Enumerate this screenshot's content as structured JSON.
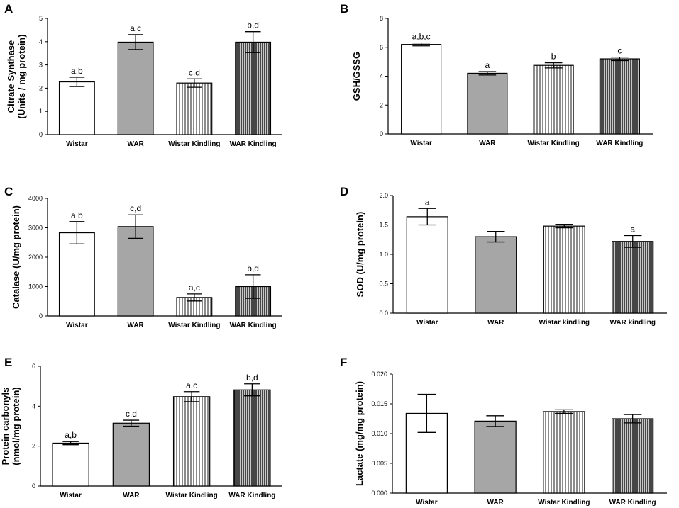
{
  "figure": {
    "background": "#ffffff"
  },
  "patterns": {
    "Wistar": "white",
    "WAR": "gray",
    "Wistar Kindling": "vstripe-light",
    "WAR Kindling": "vstripe-dark"
  },
  "colors": {
    "axis": "#000000",
    "gray_fill": "#a6a6a6",
    "stripe": "#000000",
    "bar_outline": "#000000"
  },
  "chart_data": [
    {
      "panel": "A",
      "type": "bar",
      "ylabel_lines": [
        "Citrate Synthase",
        "(Units / mg protein)"
      ],
      "categories": [
        "Wistar",
        "WAR",
        "Wistar Kindling",
        "WAR Kindling"
      ],
      "values": [
        2.27,
        3.98,
        2.22,
        3.98
      ],
      "errors": [
        0.2,
        0.32,
        0.18,
        0.45
      ],
      "significance": [
        "a,b",
        "a,c",
        "c,d",
        "b,d"
      ],
      "ylim": [
        0,
        5
      ],
      "yticks": [
        0,
        1,
        2,
        3,
        4,
        5
      ],
      "tick_labels": [
        "0",
        "1",
        "2",
        "3",
        "4",
        "5"
      ]
    },
    {
      "panel": "B",
      "type": "bar",
      "ylabel_lines": [
        "GSH/GSSG"
      ],
      "categories": [
        "Wistar",
        "WAR",
        "Wistar Kindling",
        "WAR Kindling"
      ],
      "values": [
        6.2,
        4.2,
        4.75,
        5.2
      ],
      "errors": [
        0.1,
        0.12,
        0.18,
        0.12
      ],
      "significance": [
        "a,b,c",
        "a",
        "b",
        "c"
      ],
      "ylim": [
        0,
        8
      ],
      "yticks": [
        0,
        2,
        4,
        6,
        8
      ],
      "tick_labels": [
        "0",
        "2",
        "4",
        "6",
        "8"
      ]
    },
    {
      "panel": "C",
      "type": "bar",
      "ylabel_lines": [
        "Catalase (U/mg protein)"
      ],
      "categories": [
        "Wistar",
        "WAR",
        "Wistar Kindling",
        "WAR Kindling"
      ],
      "values": [
        2830,
        3040,
        630,
        1000
      ],
      "errors": [
        380,
        400,
        120,
        400
      ],
      "significance": [
        "a,b",
        "c,d",
        "a,c",
        "b,d"
      ],
      "ylim": [
        0,
        4000
      ],
      "yticks": [
        0,
        1000,
        2000,
        3000,
        4000
      ],
      "tick_labels": [
        "0",
        "1000",
        "2000",
        "3000",
        "4000"
      ]
    },
    {
      "panel": "D",
      "type": "bar",
      "ylabel_lines": [
        "SOD (U/mg protein)"
      ],
      "categories": [
        "Wistar",
        "WAR",
        "Wistar kindling",
        "WAR kindling"
      ],
      "values": [
        1.64,
        1.3,
        1.48,
        1.22
      ],
      "errors": [
        0.14,
        0.09,
        0.03,
        0.1
      ],
      "significance": [
        "a",
        "",
        "",
        "a"
      ],
      "ylim": [
        0,
        2.0
      ],
      "yticks": [
        0,
        0.5,
        1.0,
        1.5,
        2.0
      ],
      "tick_labels": [
        "0.0",
        "0.5",
        "1.0",
        "1.5",
        "2.0"
      ]
    },
    {
      "panel": "E",
      "type": "bar",
      "ylabel_lines": [
        "Protein carbonyls",
        "(nmol/mg protein)"
      ],
      "categories": [
        "Wistar",
        "WAR",
        "Wistar Kindling",
        "WAR Kindling"
      ],
      "values": [
        2.15,
        3.15,
        4.48,
        4.82
      ],
      "errors": [
        0.08,
        0.15,
        0.25,
        0.3
      ],
      "significance": [
        "a,b",
        "c,d",
        "a,c",
        "b,d"
      ],
      "ylim": [
        0,
        6
      ],
      "yticks": [
        0,
        2,
        4,
        6
      ],
      "tick_labels": [
        "0",
        "2",
        "4",
        "6"
      ]
    },
    {
      "panel": "F",
      "type": "bar",
      "ylabel_lines": [
        "Lactate (mg/mg protein)"
      ],
      "categories": [
        "Wistar",
        "WAR",
        "Wistar Kindling",
        "WAR Kindling"
      ],
      "values": [
        0.0134,
        0.0121,
        0.0137,
        0.0125
      ],
      "errors": [
        0.0032,
        0.0009,
        0.0003,
        0.0007
      ],
      "significance": [
        "",
        "",
        "",
        ""
      ],
      "ylim": [
        0,
        0.02
      ],
      "yticks": [
        0,
        0.005,
        0.01,
        0.015,
        0.02
      ],
      "tick_labels": [
        "0.000",
        "0.005",
        "0.010",
        "0.015",
        "0.020"
      ]
    }
  ]
}
